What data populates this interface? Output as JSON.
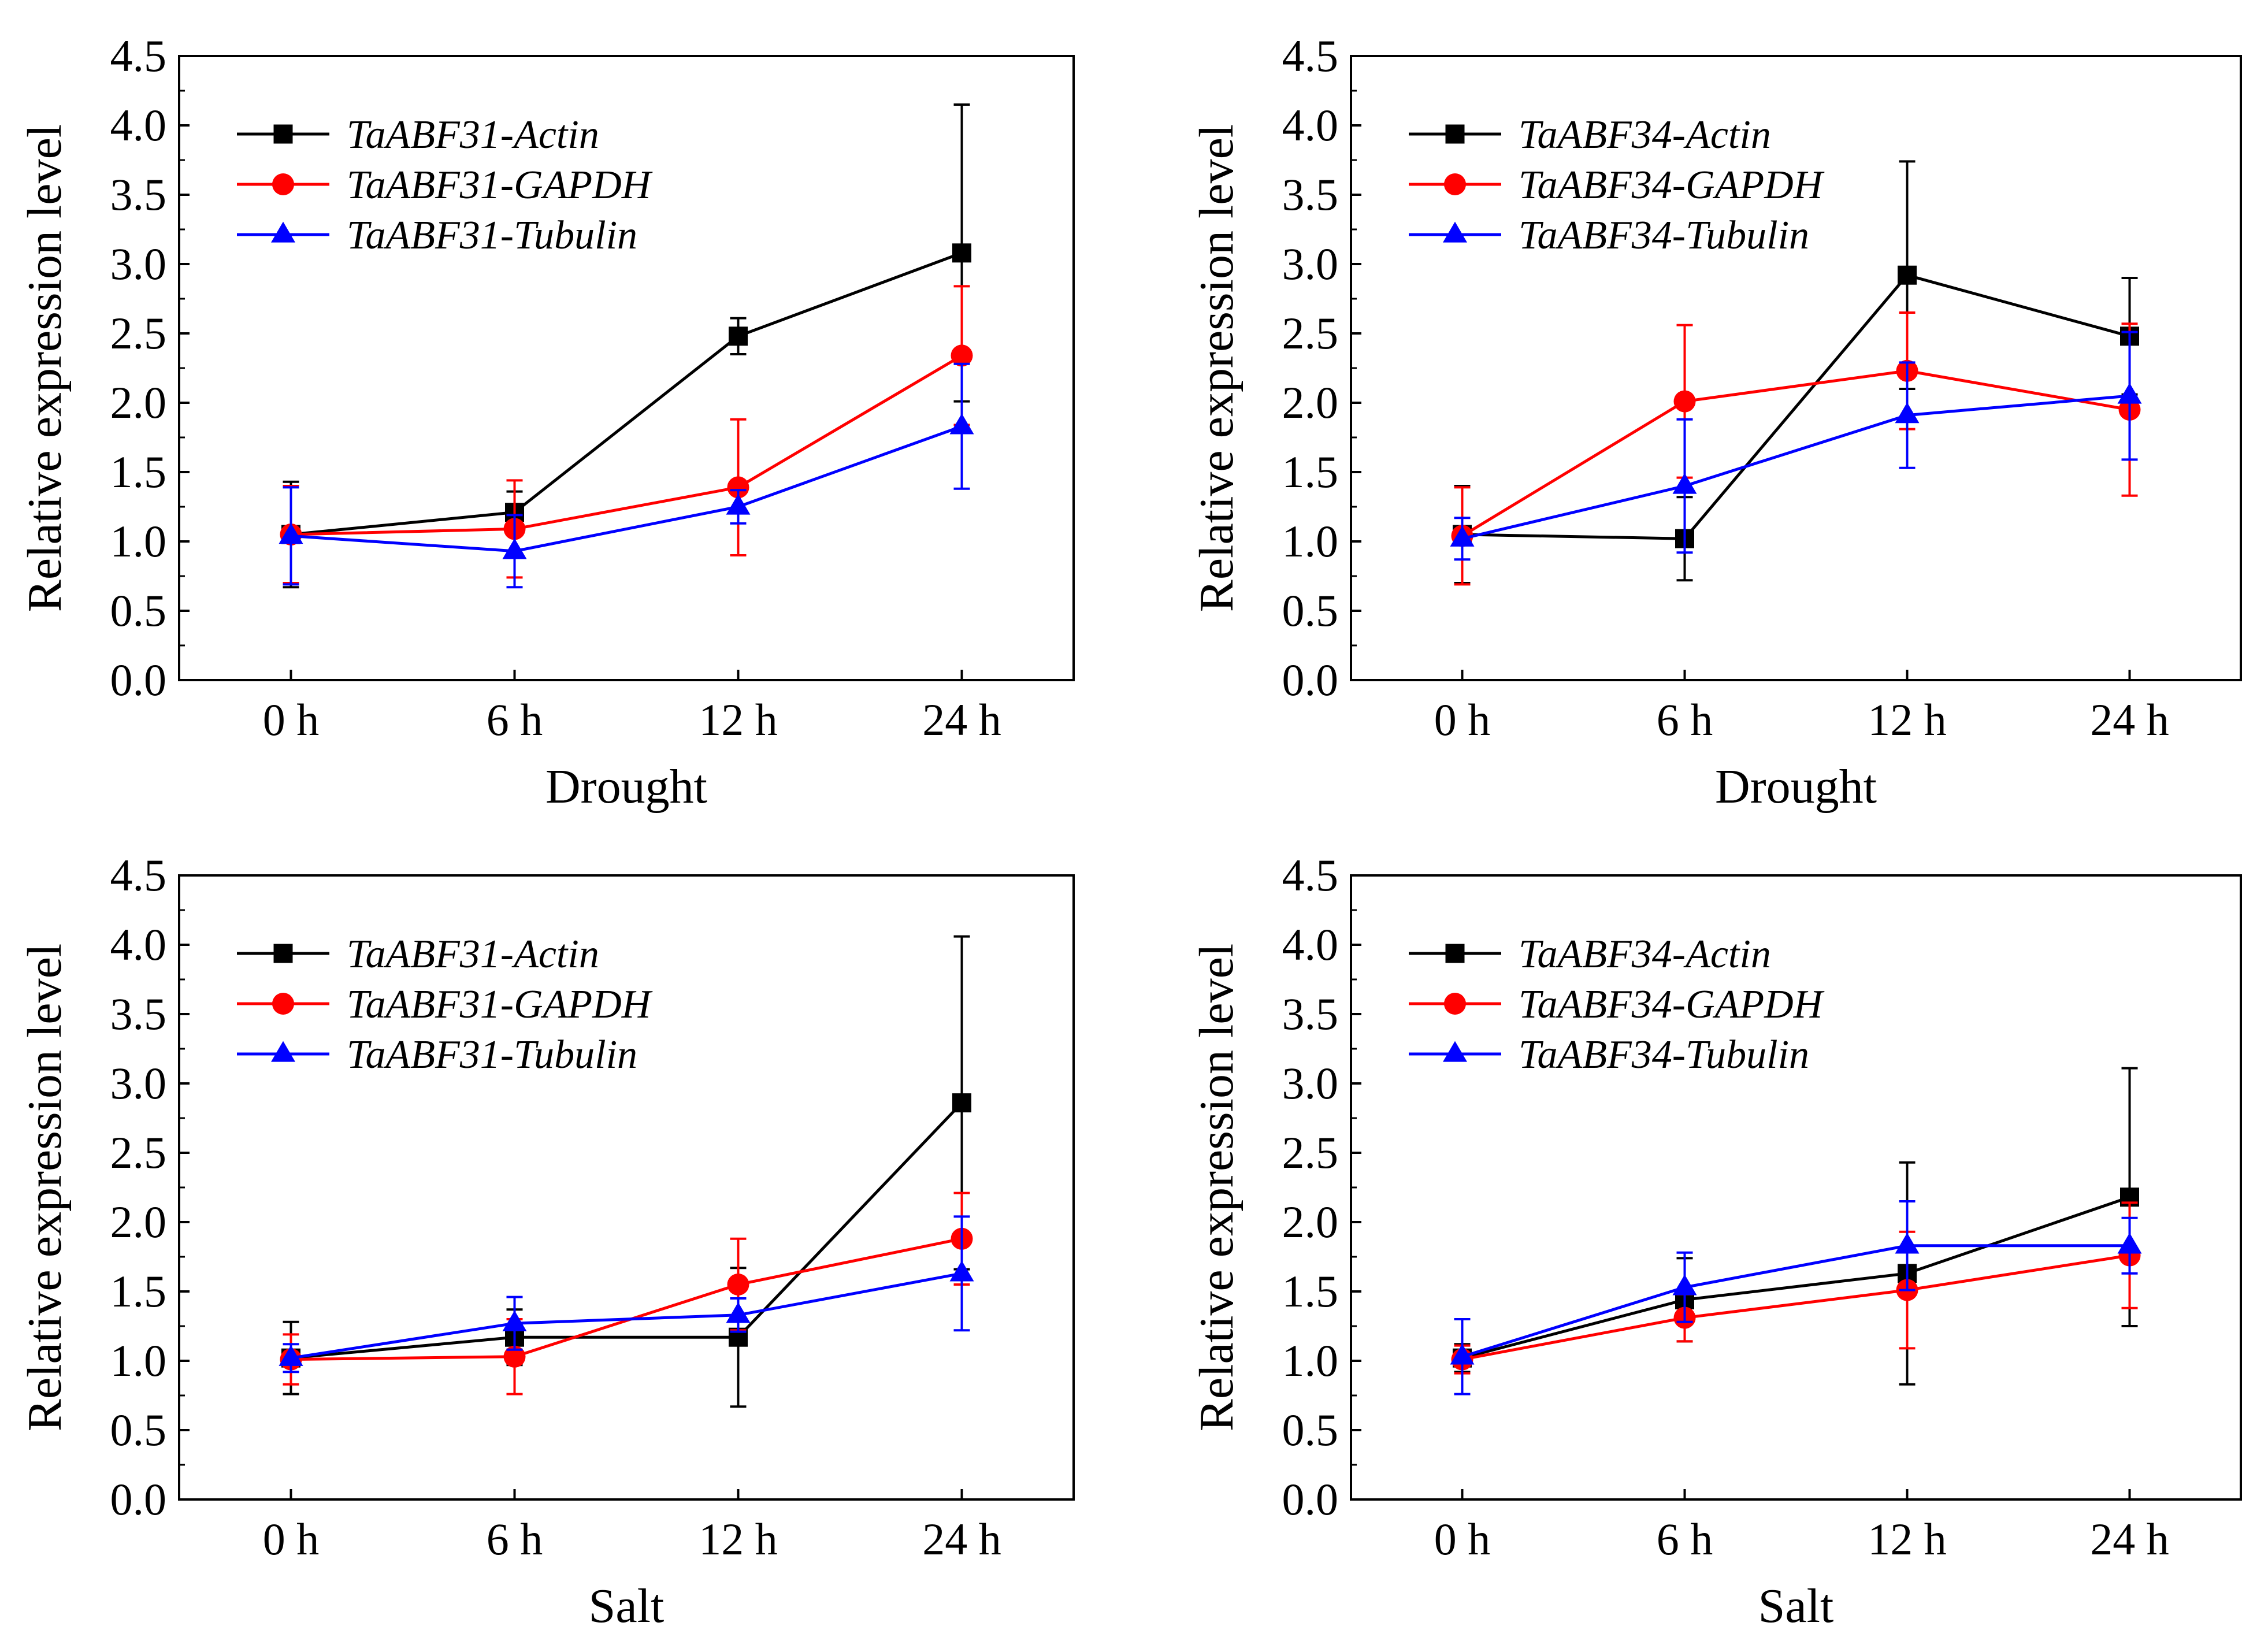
{
  "figure": {
    "colors": {
      "actin": "#000000",
      "gapdh": "#ff0000",
      "tubulin": "#0000ff",
      "axis": "#000000"
    },
    "markers": {
      "actin": "square",
      "gapdh": "circle",
      "tubulin": "triangle"
    }
  },
  "chart_data": [
    {
      "id": "p1",
      "type": "line",
      "categories": [
        "0 h",
        "6 h",
        "12 h",
        "24 h"
      ],
      "xlabel": "Drought",
      "ylabel": "Relative expression level",
      "ylim": [
        0,
        4.5
      ],
      "yticks": [
        "0.0",
        "0.5",
        "1.0",
        "1.5",
        "2.0",
        "2.5",
        "3.0",
        "3.5",
        "4.0",
        "4.5"
      ],
      "legend_position": "top-left",
      "series": [
        {
          "key": "actin",
          "name": "TaABF31-Actin",
          "values": [
            1.05,
            1.21,
            2.48,
            3.08
          ],
          "errors": [
            0.38,
            0.15,
            0.13,
            1.07
          ]
        },
        {
          "key": "gapdh",
          "name": "TaABF31-GAPDH",
          "values": [
            1.05,
            1.09,
            1.39,
            2.34
          ],
          "errors": [
            0.35,
            0.35,
            0.49,
            0.5
          ]
        },
        {
          "key": "tubulin",
          "name": "TaABF31-Tubulin",
          "values": [
            1.04,
            0.93,
            1.25,
            1.83
          ],
          "errors": [
            0.35,
            0.26,
            0.12,
            0.45
          ]
        }
      ]
    },
    {
      "id": "p2",
      "type": "line",
      "categories": [
        "0 h",
        "6 h",
        "12 h",
        "24 h"
      ],
      "xlabel": "Drought",
      "ylabel": "Relative expression level",
      "ylim": [
        0,
        4.5
      ],
      "yticks": [
        "0.0",
        "0.5",
        "1.0",
        "1.5",
        "2.0",
        "2.5",
        "3.0",
        "3.5",
        "4.0",
        "4.5"
      ],
      "legend_position": "top-left",
      "series": [
        {
          "key": "actin",
          "name": "TaABF34-Actin",
          "values": [
            1.05,
            1.02,
            2.92,
            2.48
          ],
          "errors": [
            0.35,
            0.3,
            0.82,
            0.42
          ]
        },
        {
          "key": "gapdh",
          "name": "TaABF34-GAPDH",
          "values": [
            1.04,
            2.01,
            2.23,
            1.95
          ],
          "errors": [
            0.35,
            0.55,
            0.42,
            0.62
          ]
        },
        {
          "key": "tubulin",
          "name": "TaABF34-Tubulin",
          "values": [
            1.02,
            1.4,
            1.91,
            2.05
          ],
          "errors": [
            0.15,
            0.48,
            0.38,
            0.46
          ]
        }
      ]
    },
    {
      "id": "p3",
      "type": "line",
      "categories": [
        "0 h",
        "6 h",
        "12 h",
        "24 h"
      ],
      "xlabel": "Salt",
      "ylabel": "Relative expression level",
      "ylim": [
        0,
        4.5
      ],
      "yticks": [
        "0.0",
        "0.5",
        "1.0",
        "1.5",
        "2.0",
        "2.5",
        "3.0",
        "3.5",
        "4.0",
        "4.5"
      ],
      "legend_position": "top-left",
      "series": [
        {
          "key": "actin",
          "name": "TaABF31-Actin",
          "values": [
            1.02,
            1.17,
            1.17,
            2.86
          ],
          "errors": [
            0.26,
            0.2,
            0.5,
            1.2
          ]
        },
        {
          "key": "gapdh",
          "name": "TaABF31-GAPDH",
          "values": [
            1.01,
            1.03,
            1.55,
            1.88
          ],
          "errors": [
            0.18,
            0.27,
            0.33,
            0.33
          ]
        },
        {
          "key": "tubulin",
          "name": "TaABF31-Tubulin",
          "values": [
            1.02,
            1.27,
            1.33,
            1.63
          ],
          "errors": [
            0.1,
            0.19,
            0.12,
            0.41
          ]
        }
      ]
    },
    {
      "id": "p4",
      "type": "line",
      "categories": [
        "0 h",
        "6 h",
        "12 h",
        "24 h"
      ],
      "xlabel": "Salt",
      "ylabel": "Relative expression level",
      "ylim": [
        0,
        4.5
      ],
      "yticks": [
        "0.0",
        "0.5",
        "1.0",
        "1.5",
        "2.0",
        "2.5",
        "3.0",
        "3.5",
        "4.0",
        "4.5"
      ],
      "legend_position": "top-left",
      "series": [
        {
          "key": "actin",
          "name": "TaABF34-Actin",
          "values": [
            1.02,
            1.44,
            1.63,
            2.18
          ],
          "errors": [
            0.1,
            0.3,
            0.8,
            0.93
          ]
        },
        {
          "key": "gapdh",
          "name": "TaABF34-GAPDH",
          "values": [
            1.01,
            1.31,
            1.51,
            1.76
          ],
          "errors": [
            0.1,
            0.17,
            0.42,
            0.38
          ]
        },
        {
          "key": "tubulin",
          "name": "TaABF34-Tubulin",
          "values": [
            1.03,
            1.53,
            1.83,
            1.83
          ],
          "errors": [
            0.27,
            0.25,
            0.32,
            0.2
          ]
        }
      ]
    }
  ]
}
